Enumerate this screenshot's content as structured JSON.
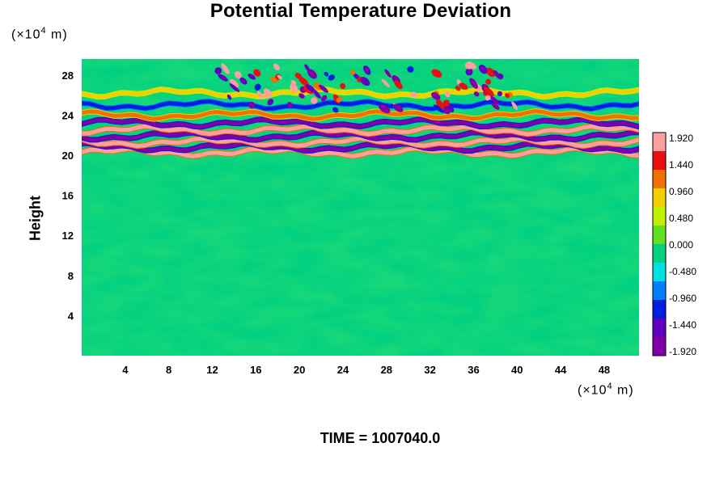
{
  "chart_data": {
    "type": "heatmap",
    "title": "Potential Temperature Deviation",
    "xlabel": "",
    "ylabel": "Height",
    "x_unit_prefix": "(×10",
    "x_unit_exp": "4",
    "x_unit_suffix": " m)",
    "y_unit_prefix": "(×10",
    "y_unit_exp": "4",
    "y_unit_suffix": " m)",
    "x_ticks": [
      4,
      8,
      12,
      16,
      20,
      24,
      28,
      32,
      36,
      40,
      44,
      48
    ],
    "y_ticks": [
      4,
      8,
      12,
      16,
      20,
      24,
      28
    ],
    "xlim": [
      0,
      51.2
    ],
    "ylim": [
      0,
      29.6
    ],
    "colorbar": {
      "labels": [
        "1.920",
        "1.440",
        "0.960",
        "0.480",
        "0.000",
        "-0.480",
        "-0.960",
        "-1.440",
        "-1.920"
      ],
      "range": [
        -1.92,
        1.92
      ],
      "colors": [
        "#ffa0a0",
        "#e81010",
        "#f07000",
        "#f0d000",
        "#c0f000",
        "#60e020",
        "#00d080",
        "#00e0e0",
        "#0080ff",
        "#0020e0",
        "#6000c0",
        "#8000a8"
      ]
    },
    "footer": "TIME = 1007040.0",
    "background_value": 0.0,
    "bands": [
      {
        "y": 20.3,
        "value": 1.92
      },
      {
        "y": 20.8,
        "value": -1.92
      },
      {
        "y": 21.3,
        "value": 1.92
      },
      {
        "y": 21.9,
        "value": -1.92
      },
      {
        "y": 22.5,
        "value": 1.7
      },
      {
        "y": 23.2,
        "value": -1.92
      },
      {
        "y": 24.0,
        "value": 1.2
      },
      {
        "y": 25.0,
        "value": -1.2
      },
      {
        "y": 26.2,
        "value": 0.9
      }
    ]
  }
}
